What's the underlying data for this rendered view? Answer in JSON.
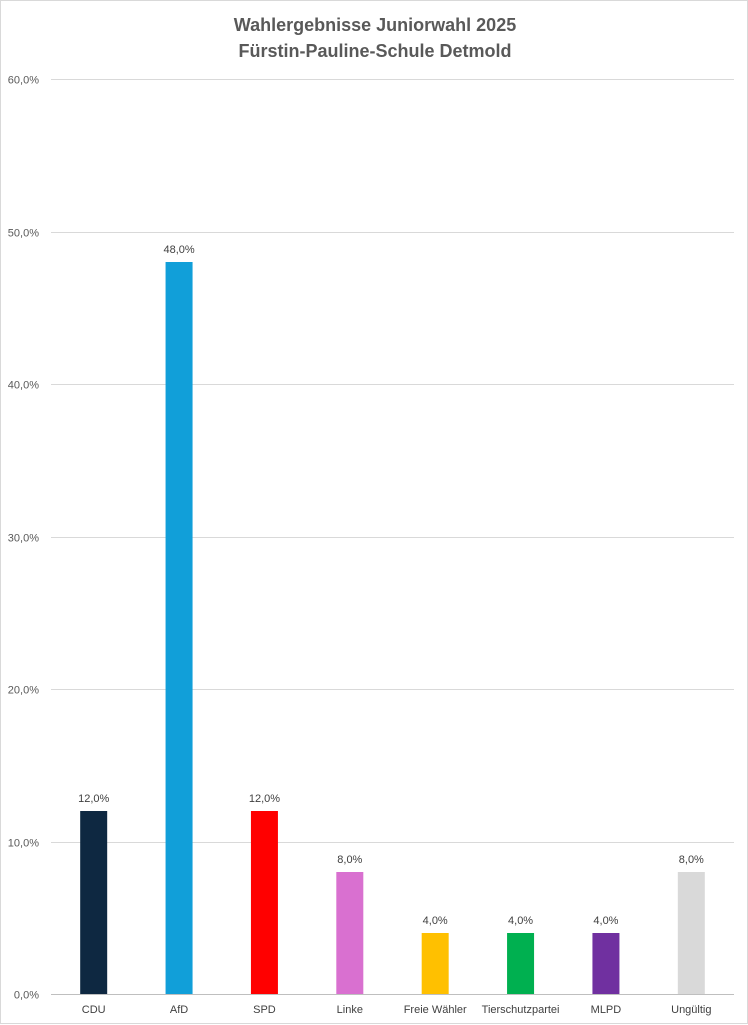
{
  "chart_data": {
    "type": "bar",
    "title": [
      "Wahlergebnisse  Juniorwahl 2025",
      "Fürstin-Pauline-Schule Detmold"
    ],
    "xlabel": "",
    "ylabel": "",
    "ylim": [
      0,
      60
    ],
    "y_ticks": [
      0,
      10,
      20,
      30,
      40,
      50,
      60
    ],
    "y_tick_labels": [
      "0,0%",
      "10,0%",
      "20,0%",
      "30,0%",
      "40,0%",
      "50,0%",
      "60,0%"
    ],
    "grid": true,
    "legend": "none",
    "categories": [
      "CDU",
      "AfD",
      "SPD",
      "Linke",
      "Freie Wähler",
      "Tierschutzpartei",
      "MLPD",
      "Ungültig"
    ],
    "values": [
      12,
      48,
      12,
      8,
      4,
      4,
      4,
      8
    ],
    "data_labels": [
      "12,0%",
      "48,0%",
      "12,0%",
      "8,0%",
      "4,0%",
      "4,0%",
      "4,0%",
      "8,0%"
    ],
    "colors": [
      "#0e2841",
      "#119fd9",
      "#ff0000",
      "#d970d0",
      "#ffc000",
      "#00b050",
      "#7030a0",
      "#d9d9d9"
    ]
  }
}
